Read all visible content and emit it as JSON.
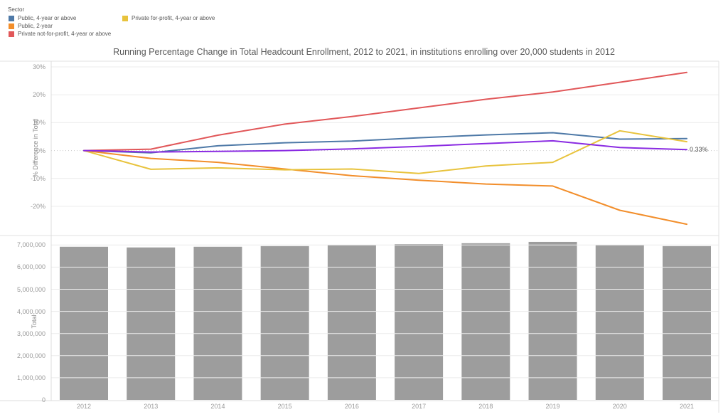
{
  "legend": {
    "title": "Sector",
    "items": [
      {
        "label": "Public, 4-year or above",
        "color": "#4e79a7",
        "column": 1
      },
      {
        "label": "Public, 2-year",
        "color": "#f28e2b",
        "column": 1
      },
      {
        "label": "Private not-for-profit, 4-year or above",
        "color": "#e15759",
        "column": 1
      },
      {
        "label": "Private for-profit, 4-year or above",
        "color": "#e8c33d",
        "column": 2
      }
    ]
  },
  "title": "Running Percentage Change in Total Headcount Enrollment, 2012 to 2021, in institutions enrolling over 20,000 students in 2012",
  "chart_data": [
    {
      "type": "line",
      "title": "Running Percentage Change in Total Headcount Enrollment, 2012 to 2021, in institutions enrolling over 20,000 students in 2012",
      "xlabel": "",
      "ylabel": "% Difference in Total",
      "x": [
        "2012",
        "2013",
        "2014",
        "2015",
        "2016",
        "2017",
        "2018",
        "2019",
        "2020",
        "2021"
      ],
      "ylim": [
        -28,
        31
      ],
      "grid": true,
      "legend_position": "top-left",
      "yticks": [
        {
          "label": "30%",
          "value": 30
        },
        {
          "label": "20%",
          "value": 20
        },
        {
          "label": "10%",
          "value": 10
        },
        {
          "label": "0%",
          "value": 0
        },
        {
          "label": "-10%",
          "value": -10
        },
        {
          "label": "-20%",
          "value": -20
        }
      ],
      "series": [
        {
          "name": "Public, 4-year or above",
          "color": "#4e79a7",
          "values": [
            0,
            -0.8,
            1.7,
            2.8,
            3.4,
            4.6,
            5.6,
            6.4,
            4.1,
            4.3
          ]
        },
        {
          "name": "Public, 2-year",
          "color": "#f28e2b",
          "values": [
            0,
            -2.8,
            -4.2,
            -6.6,
            -9.0,
            -10.6,
            -12.0,
            -12.7,
            -21.4,
            -26.4
          ]
        },
        {
          "name": "Private not-for-profit, 4-year or above",
          "color": "#e15759",
          "values": [
            0,
            0.5,
            5.5,
            9.5,
            12.2,
            15.3,
            18.4,
            21.0,
            24.5,
            28.0
          ]
        },
        {
          "name": "Private for-profit, 4-year or above",
          "color": "#e8c33d",
          "values": [
            0,
            -6.7,
            -6.2,
            -6.9,
            -6.6,
            -8.2,
            -5.5,
            -4.2,
            7.1,
            3.2
          ]
        },
        {
          "name": "Total",
          "color": "#8a2be2",
          "values": [
            0,
            -0.5,
            -0.3,
            0,
            0.6,
            1.5,
            2.5,
            3.5,
            1.1,
            0.33
          ]
        }
      ],
      "end_label": "0.33%"
    },
    {
      "type": "bar",
      "xlabel": "",
      "ylabel": "Total",
      "categories": [
        "2012",
        "2013",
        "2014",
        "2015",
        "2016",
        "2017",
        "2018",
        "2019",
        "2020",
        "2021"
      ],
      "values": [
        6920000,
        6890000,
        6920000,
        6950000,
        7000000,
        7040000,
        7080000,
        7140000,
        7000000,
        6950000
      ],
      "bar_color": "#9d9d9d",
      "ylim": [
        0,
        7300000
      ],
      "grid": true,
      "yticks": [
        {
          "label": "7,000,000",
          "value": 7000000
        },
        {
          "label": "6,000,000",
          "value": 6000000
        },
        {
          "label": "5,000,000",
          "value": 5000000
        },
        {
          "label": "4,000,000",
          "value": 4000000
        },
        {
          "label": "3,000,000",
          "value": 3000000
        },
        {
          "label": "2,000,000",
          "value": 2000000
        },
        {
          "label": "1,000,000",
          "value": 1000000
        },
        {
          "label": "0",
          "value": 0
        }
      ]
    }
  ]
}
